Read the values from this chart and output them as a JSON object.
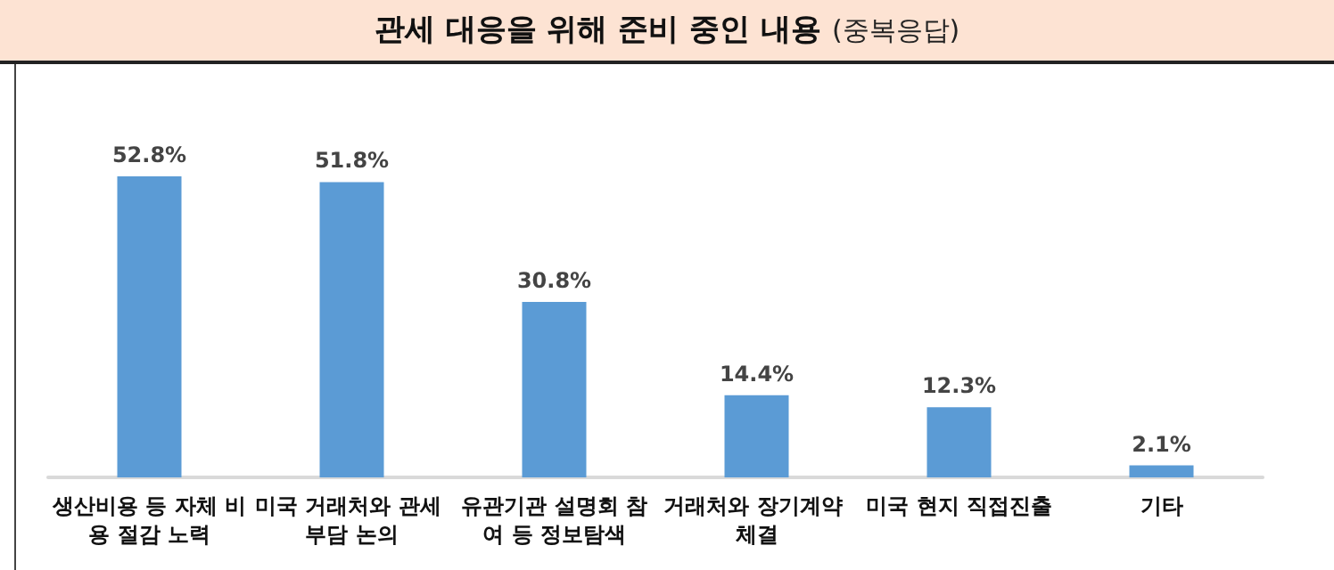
{
  "chart_data": {
    "type": "bar",
    "title": "관세 대응을 위해 준비 중인 내용",
    "subtitle": "(중복응답)",
    "categories": [
      "생산비용 등 자체 비용 절감 노력",
      "미국 거래처와 관세 부담 논의",
      "유관기관 설명회 참여 등 정보탐색",
      "거래처와 장기계약 체결",
      "미국 현지 직접진출",
      "기타"
    ],
    "values": [
      52.8,
      51.8,
      30.8,
      14.4,
      12.3,
      2.1
    ],
    "value_labels": [
      "52.8%",
      "51.8%",
      "30.8%",
      "14.4%",
      "12.3%",
      "2.1%"
    ],
    "color": "#5b9bd5"
  }
}
